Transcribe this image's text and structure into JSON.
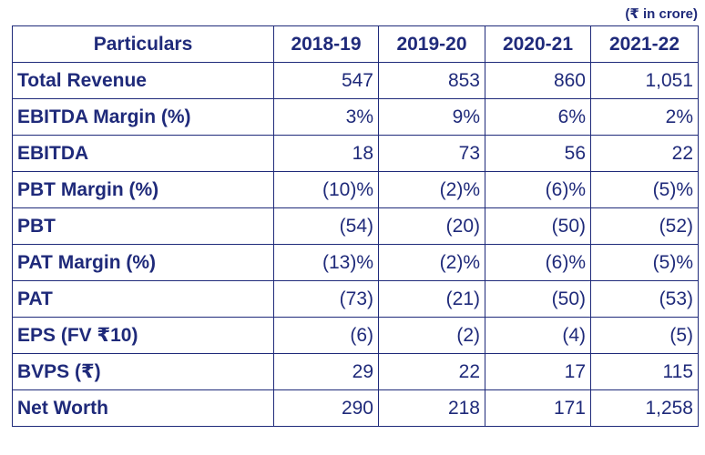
{
  "unit_note": "(₹ in crore)",
  "headers": [
    "Particulars",
    "2018-19",
    "2019-20",
    "2020-21",
    "2021-22"
  ],
  "rows": [
    {
      "label": "Total Revenue",
      "values": [
        "547",
        "853",
        "860",
        "1,051"
      ]
    },
    {
      "label": "EBITDA Margin (%)",
      "values": [
        "3%",
        "9%",
        "6%",
        "2%"
      ]
    },
    {
      "label": "EBITDA",
      "values": [
        "18",
        "73",
        "56",
        "22"
      ]
    },
    {
      "label": "PBT Margin (%)",
      "values": [
        "(10)%",
        "(2)%",
        "(6)%",
        "(5)%"
      ]
    },
    {
      "label": "PBT",
      "values": [
        "(54)",
        "(20)",
        "(50)",
        "(52)"
      ]
    },
    {
      "label": "PAT Margin (%)",
      "values": [
        "(13)%",
        "(2)%",
        "(6)%",
        "(5)%"
      ]
    },
    {
      "label": "PAT",
      "values": [
        "(73)",
        "(21)",
        "(50)",
        "(53)"
      ]
    },
    {
      "label": "EPS (FV ₹10)",
      "values": [
        "(6)",
        "(2)",
        "(4)",
        "(5)"
      ]
    },
    {
      "label": "BVPS (₹)",
      "values": [
        "29",
        "22",
        "17",
        "115"
      ]
    },
    {
      "label": "Net Worth",
      "values": [
        "290",
        "218",
        "171",
        "1,258"
      ]
    }
  ]
}
